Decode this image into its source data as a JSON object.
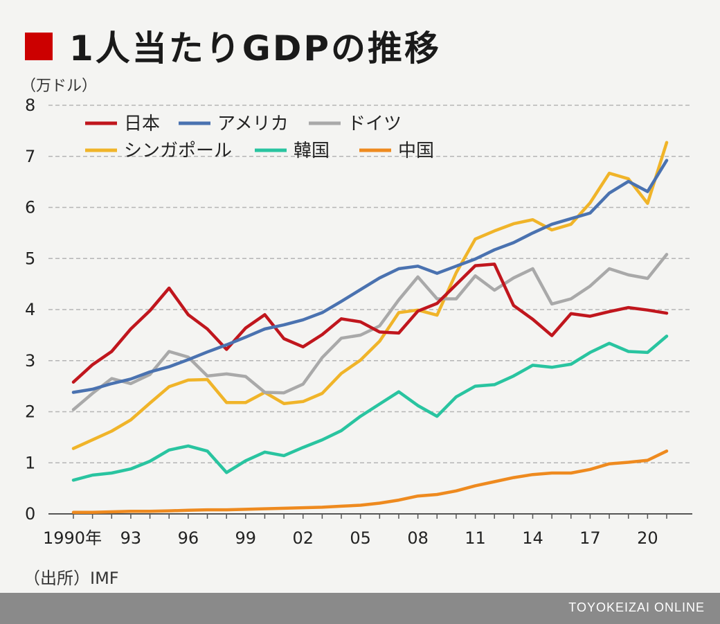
{
  "title": "1人当たりGDPの推移",
  "title_marker_color": "#cc0000",
  "unit_label": "（万ドル）",
  "source": "（出所）IMF",
  "footer_brand": "TOYOKEIZAI ONLINE",
  "chart_data": {
    "type": "line",
    "title": "1人当たりGDPの推移",
    "ylabel": "（万ドル）",
    "ylim": [
      0,
      8
    ],
    "yticks": [
      "0",
      "1",
      "2",
      "3",
      "4",
      "5",
      "6",
      "7",
      "8"
    ],
    "grid": "horizontal dashed",
    "legend_position": "top-left",
    "x": [
      1990,
      1991,
      1992,
      1993,
      1994,
      1995,
      1996,
      1997,
      1998,
      1999,
      2000,
      2001,
      2002,
      2003,
      2004,
      2005,
      2006,
      2007,
      2008,
      2009,
      2010,
      2011,
      2012,
      2013,
      2014,
      2015,
      2016,
      2017,
      2018,
      2019,
      2020,
      2021
    ],
    "xticks": [
      {
        "x": 1990,
        "label": "1990年"
      },
      {
        "x": 1993,
        "label": "93"
      },
      {
        "x": 1996,
        "label": "96"
      },
      {
        "x": 1999,
        "label": "99"
      },
      {
        "x": 2002,
        "label": "02"
      },
      {
        "x": 2005,
        "label": "05"
      },
      {
        "x": 2008,
        "label": "08"
      },
      {
        "x": 2011,
        "label": "11"
      },
      {
        "x": 2014,
        "label": "14"
      },
      {
        "x": 2017,
        "label": "17"
      },
      {
        "x": 2020,
        "label": "20"
      }
    ],
    "series": [
      {
        "name": "日本",
        "color": "#c0161d",
        "values": [
          2.58,
          2.92,
          3.18,
          3.62,
          3.98,
          4.42,
          3.9,
          3.62,
          3.22,
          3.64,
          3.9,
          3.43,
          3.27,
          3.51,
          3.82,
          3.76,
          3.56,
          3.54,
          3.97,
          4.12,
          4.49,
          4.86,
          4.89,
          4.08,
          3.81,
          3.49,
          3.92,
          3.87,
          3.96,
          4.04,
          3.99,
          3.93
        ]
      },
      {
        "name": "アメリカ",
        "color": "#4a72b0",
        "values": [
          2.38,
          2.44,
          2.55,
          2.64,
          2.78,
          2.88,
          3.02,
          3.17,
          3.31,
          3.46,
          3.62,
          3.7,
          3.8,
          3.94,
          4.16,
          4.39,
          4.62,
          4.8,
          4.85,
          4.71,
          4.85,
          4.99,
          5.17,
          5.31,
          5.5,
          5.67,
          5.78,
          5.89,
          6.28,
          6.51,
          6.31,
          6.92
        ]
      },
      {
        "name": "ドイツ",
        "color": "#a9a9a9",
        "values": [
          2.04,
          2.36,
          2.65,
          2.55,
          2.73,
          3.18,
          3.07,
          2.7,
          2.74,
          2.69,
          2.38,
          2.37,
          2.54,
          3.06,
          3.44,
          3.5,
          3.68,
          4.19,
          4.64,
          4.21,
          4.21,
          4.66,
          4.38,
          4.62,
          4.8,
          4.11,
          4.21,
          4.46,
          4.8,
          4.68,
          4.61,
          5.08
        ]
      },
      {
        "name": "シンガポール",
        "color": "#f0b429",
        "values": [
          1.28,
          1.45,
          1.62,
          1.84,
          2.17,
          2.49,
          2.62,
          2.63,
          2.18,
          2.18,
          2.38,
          2.16,
          2.2,
          2.36,
          2.75,
          3.01,
          3.38,
          3.94,
          3.99,
          3.89,
          4.72,
          5.38,
          5.54,
          5.68,
          5.76,
          5.56,
          5.67,
          6.09,
          6.67,
          6.56,
          6.08,
          7.27
        ]
      },
      {
        "name": "韓国",
        "color": "#29c4a0",
        "values": [
          0.66,
          0.76,
          0.8,
          0.88,
          1.03,
          1.25,
          1.33,
          1.23,
          0.81,
          1.04,
          1.21,
          1.14,
          1.3,
          1.45,
          1.63,
          1.91,
          2.15,
          2.39,
          2.12,
          1.91,
          2.29,
          2.5,
          2.53,
          2.7,
          2.91,
          2.87,
          2.93,
          3.16,
          3.34,
          3.18,
          3.16,
          3.48
        ]
      },
      {
        "name": "中国",
        "color": "#ee8a1f",
        "values": [
          0.03,
          0.03,
          0.04,
          0.05,
          0.05,
          0.06,
          0.07,
          0.08,
          0.08,
          0.09,
          0.1,
          0.11,
          0.12,
          0.13,
          0.15,
          0.17,
          0.21,
          0.27,
          0.35,
          0.38,
          0.45,
          0.55,
          0.63,
          0.71,
          0.77,
          0.8,
          0.8,
          0.87,
          0.98,
          1.01,
          1.05,
          1.23
        ]
      }
    ]
  }
}
